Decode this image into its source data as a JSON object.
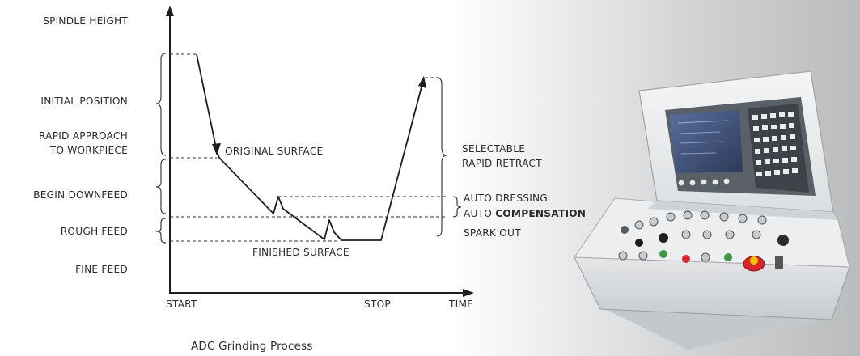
{
  "left_labels": {
    "spindle_height": "SPINDLE HEIGHT",
    "initial_position": "INITIAL POSITION",
    "rapid_approach_line1": "RAPID APPROACH",
    "rapid_approach_line2": "TO WORKPIECE",
    "begin_downfeed": "BEGIN DOWNFEED",
    "rough_feed": "ROUGH FEED",
    "fine_feed": "FINE FEED"
  },
  "curve_labels": {
    "original_surface": "ORIGINAL SURFACE",
    "finished_surface": "FINISHED SURFACE"
  },
  "right_labels": {
    "selectable_line1": "SELECTABLE",
    "selectable_line2": "RAPID RETRACT",
    "auto_dressing": "AUTO DRESSING",
    "auto_prefix": "AUTO",
    "compensation": "COMPENSATION",
    "spark_out": "SPARK OUT"
  },
  "x_axis": {
    "start": "START",
    "stop": "STOP",
    "time": "TIME"
  },
  "caption": "ADC Grinding Process",
  "colors": {
    "panel_body": "#eef0f1",
    "screen": "#3a4a6e",
    "emergency_stop": "#d8262b",
    "accent_green": "#3a9a4a"
  }
}
